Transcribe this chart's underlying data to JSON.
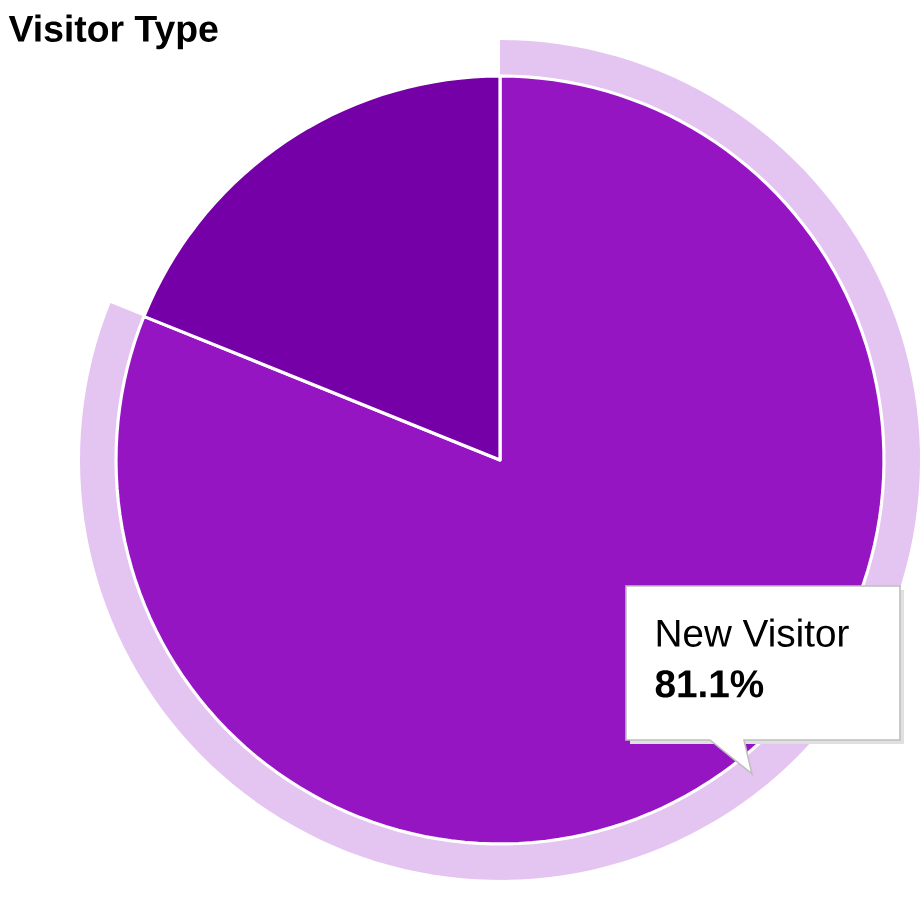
{
  "chart_data": {
    "type": "pie",
    "title": "Visitor Type",
    "categories": [
      "New Visitor",
      null
    ],
    "values": [
      81.1,
      18.9
    ],
    "colors": [
      "#9515c3",
      "#7500a8"
    ],
    "value_labels": [
      "81.1%",
      null
    ]
  }
}
